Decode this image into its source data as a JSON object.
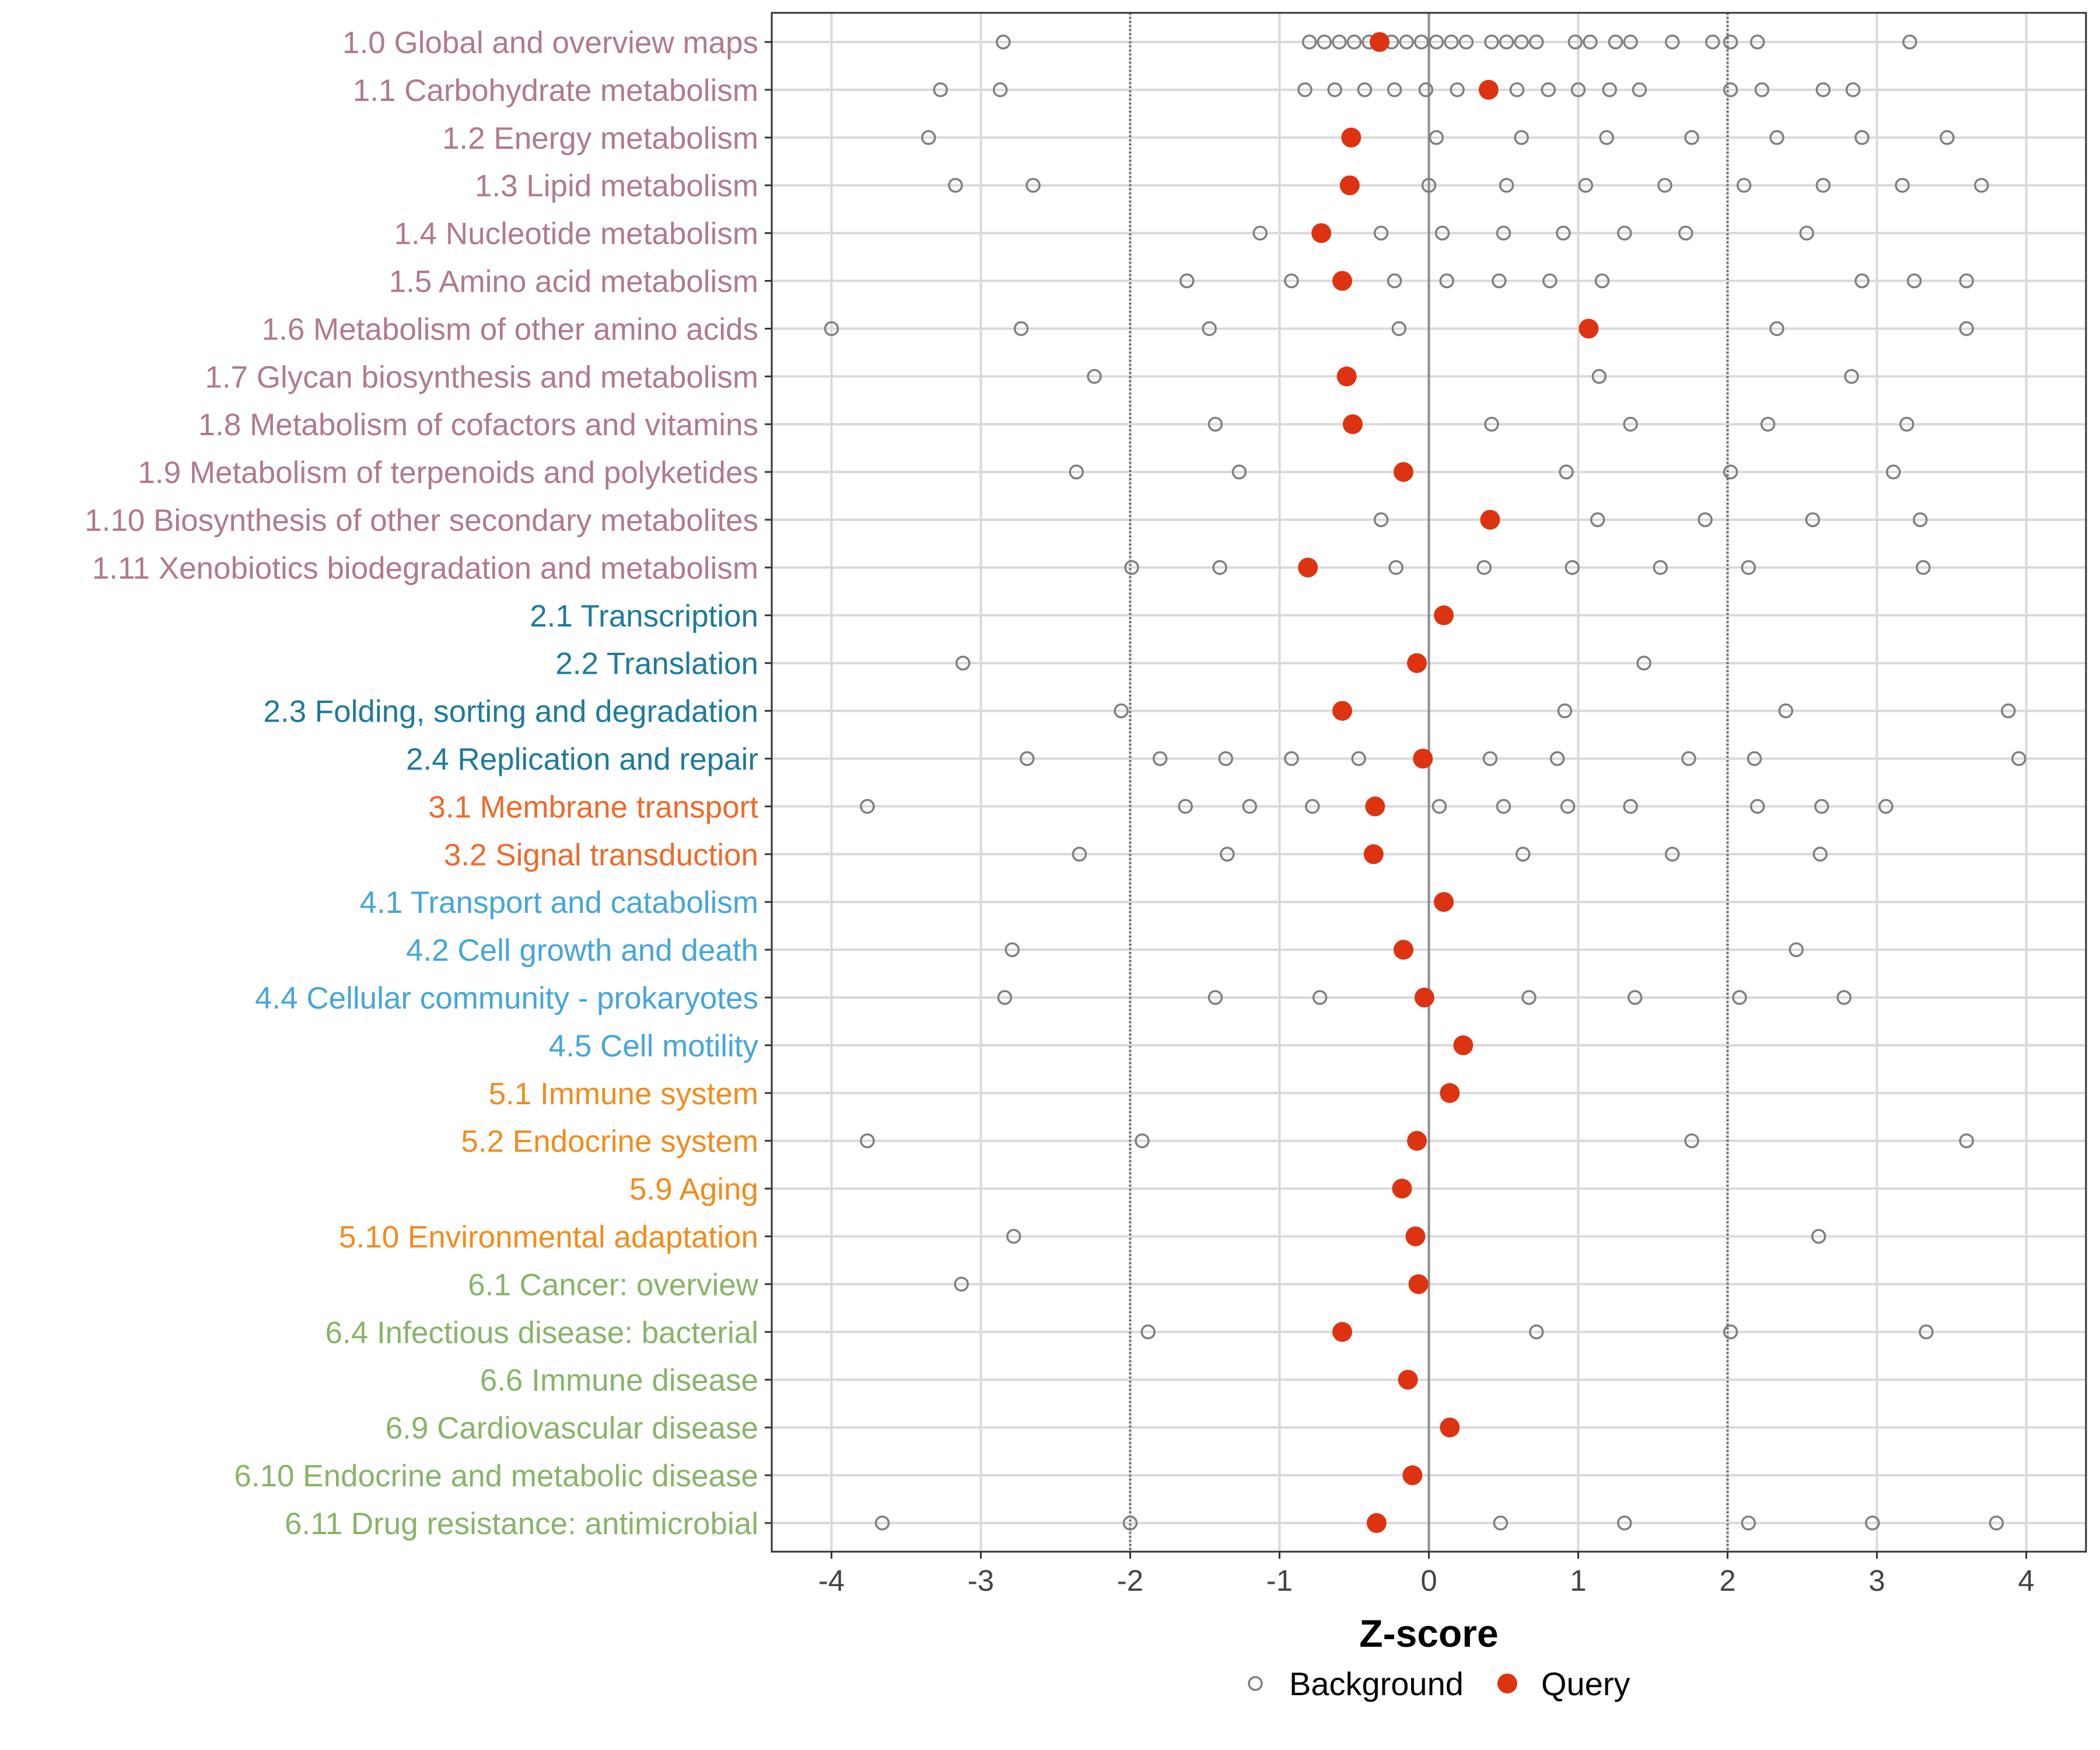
{
  "chart_data": {
    "type": "scatter",
    "xlabel": "Z-score",
    "xlim": [
      -4.4,
      4.4
    ],
    "x_ticks": [
      -4,
      -3,
      -2,
      -1,
      0,
      1,
      2,
      3,
      4
    ],
    "x_tick_labels": [
      "-4",
      "-3",
      "-2",
      "-1",
      "0",
      "1",
      "2",
      "3",
      "4"
    ],
    "reference_lines": {
      "solid": 0,
      "dotted": [
        -2,
        2
      ]
    },
    "grid": true,
    "legend": {
      "position": "bottom",
      "items": [
        {
          "name": "Background",
          "marker": "open-circle",
          "color": "#7f7f7f"
        },
        {
          "name": "Query",
          "marker": "filled-circle",
          "color": "#dd3311"
        }
      ]
    },
    "group_colors": {
      "1": "#b07a8a",
      "2": "#1f7a99",
      "3": "#ee6a2a",
      "4": "#45a6d8",
      "5": "#f28c1c",
      "6": "#86b468"
    },
    "categories": [
      {
        "label": "1.0 Global and overview maps",
        "group": "1",
        "query": -0.33,
        "background": [
          -2.85,
          -0.8,
          -0.7,
          -0.6,
          -0.5,
          -0.4,
          -0.25,
          -0.15,
          -0.05,
          0.05,
          0.15,
          0.25,
          0.42,
          0.52,
          0.62,
          0.72,
          0.98,
          1.08,
          1.25,
          1.35,
          1.63,
          1.9,
          2.02,
          2.2,
          3.22
        ]
      },
      {
        "label": "1.1 Carbohydrate metabolism",
        "group": "1",
        "query": 0.4,
        "background": [
          -3.27,
          -2.87,
          -0.83,
          -0.63,
          -0.43,
          -0.23,
          -0.02,
          0.19,
          0.59,
          0.8,
          1.0,
          1.21,
          1.41,
          2.02,
          2.23,
          2.64,
          2.84
        ]
      },
      {
        "label": "1.2 Energy metabolism",
        "group": "1",
        "query": -0.52,
        "background": [
          -3.35,
          0.05,
          0.62,
          1.19,
          1.76,
          2.33,
          2.9,
          3.47
        ]
      },
      {
        "label": "1.3 Lipid metabolism",
        "group": "1",
        "query": -0.53,
        "background": [
          -3.17,
          -2.65,
          0.0,
          0.52,
          1.05,
          1.58,
          2.11,
          2.64,
          3.17,
          3.7
        ]
      },
      {
        "label": "1.4 Nucleotide metabolism",
        "group": "1",
        "query": -0.72,
        "background": [
          -1.13,
          -0.32,
          0.09,
          0.5,
          0.9,
          1.31,
          1.72,
          2.53
        ]
      },
      {
        "label": "1.5 Amino acid metabolism",
        "group": "1",
        "query": -0.58,
        "background": [
          -1.62,
          -0.92,
          -0.23,
          0.12,
          0.47,
          0.81,
          1.16,
          2.9,
          3.25,
          3.6
        ]
      },
      {
        "label": "1.6 Metabolism of other amino acids",
        "group": "1",
        "query": 1.07,
        "background": [
          -4.0,
          -2.73,
          -1.47,
          -0.2,
          2.33,
          3.6
        ]
      },
      {
        "label": "1.7 Glycan biosynthesis and metabolism",
        "group": "1",
        "query": -0.55,
        "background": [
          -2.24,
          1.14,
          2.83
        ]
      },
      {
        "label": "1.8 Metabolism of cofactors and vitamins",
        "group": "1",
        "query": -0.51,
        "background": [
          -1.43,
          0.42,
          1.35,
          2.27,
          3.2
        ]
      },
      {
        "label": "1.9 Metabolism of terpenoids and polyketides",
        "group": "1",
        "query": -0.17,
        "background": [
          -2.36,
          -1.27,
          0.92,
          2.02,
          3.11
        ]
      },
      {
        "label": "1.10 Biosynthesis of other secondary metabolites",
        "group": "1",
        "query": 0.41,
        "background": [
          -0.32,
          1.13,
          1.85,
          2.57,
          3.29
        ]
      },
      {
        "label": "1.11 Xenobiotics biodegradation and metabolism",
        "group": "1",
        "query": -0.81,
        "background": [
          -1.99,
          -1.4,
          -0.22,
          0.37,
          0.96,
          1.55,
          2.14,
          3.31
        ]
      },
      {
        "label": "2.1 Transcription",
        "group": "2",
        "query": 0.1,
        "background": []
      },
      {
        "label": "2.2 Translation",
        "group": "2",
        "query": -0.08,
        "background": [
          -3.12,
          1.44
        ]
      },
      {
        "label": "2.3 Folding, sorting and degradation",
        "group": "2",
        "query": -0.58,
        "background": [
          -2.06,
          0.91,
          2.39,
          3.88
        ]
      },
      {
        "label": "2.4 Replication and repair",
        "group": "2",
        "query": -0.04,
        "background": [
          -2.69,
          -1.8,
          -1.36,
          -0.92,
          -0.47,
          0.41,
          0.86,
          1.74,
          2.18,
          3.95
        ]
      },
      {
        "label": "3.1 Membrane transport",
        "group": "3",
        "query": -0.36,
        "background": [
          -3.76,
          -1.63,
          -1.2,
          -0.78,
          0.07,
          0.5,
          0.93,
          1.35,
          2.2,
          2.63,
          3.06
        ]
      },
      {
        "label": "3.2 Signal transduction",
        "group": "3",
        "query": -0.37,
        "background": [
          -2.34,
          -1.35,
          0.63,
          1.63,
          2.62
        ]
      },
      {
        "label": "4.1 Transport and catabolism",
        "group": "4",
        "query": 0.1,
        "background": []
      },
      {
        "label": "4.2 Cell growth and death",
        "group": "4",
        "query": -0.17,
        "background": [
          -2.79,
          2.46
        ]
      },
      {
        "label": "4.4 Cellular community - prokaryotes",
        "group": "4",
        "query": -0.03,
        "background": [
          -2.84,
          -1.43,
          -0.73,
          0.67,
          1.38,
          2.08,
          2.78
        ]
      },
      {
        "label": "4.5 Cell motility",
        "group": "4",
        "query": 0.23,
        "background": []
      },
      {
        "label": "5.1 Immune system",
        "group": "5",
        "query": 0.14,
        "background": []
      },
      {
        "label": "5.2 Endocrine system",
        "group": "5",
        "query": -0.08,
        "background": [
          -3.76,
          -1.92,
          1.76,
          3.6
        ]
      },
      {
        "label": "5.9 Aging",
        "group": "5",
        "query": -0.18,
        "background": []
      },
      {
        "label": "5.10 Environmental adaptation",
        "group": "5",
        "query": -0.09,
        "background": [
          -2.78,
          2.61
        ]
      },
      {
        "label": "6.1 Cancer: overview",
        "group": "6",
        "query": -0.07,
        "background": [
          -3.13
        ]
      },
      {
        "label": "6.4 Infectious disease: bacterial",
        "group": "6",
        "query": -0.58,
        "background": [
          -1.88,
          0.72,
          2.02,
          3.33
        ]
      },
      {
        "label": "6.6 Immune disease",
        "group": "6",
        "query": -0.14,
        "background": []
      },
      {
        "label": "6.9 Cardiovascular disease",
        "group": "6",
        "query": 0.14,
        "background": []
      },
      {
        "label": "6.10 Endocrine and metabolic disease",
        "group": "6",
        "query": -0.11,
        "background": []
      },
      {
        "label": "6.11 Drug resistance: antimicrobial",
        "group": "6",
        "query": -0.35,
        "background": [
          -3.66,
          -2.0,
          0.48,
          1.31,
          2.14,
          2.97,
          3.8
        ]
      }
    ]
  }
}
